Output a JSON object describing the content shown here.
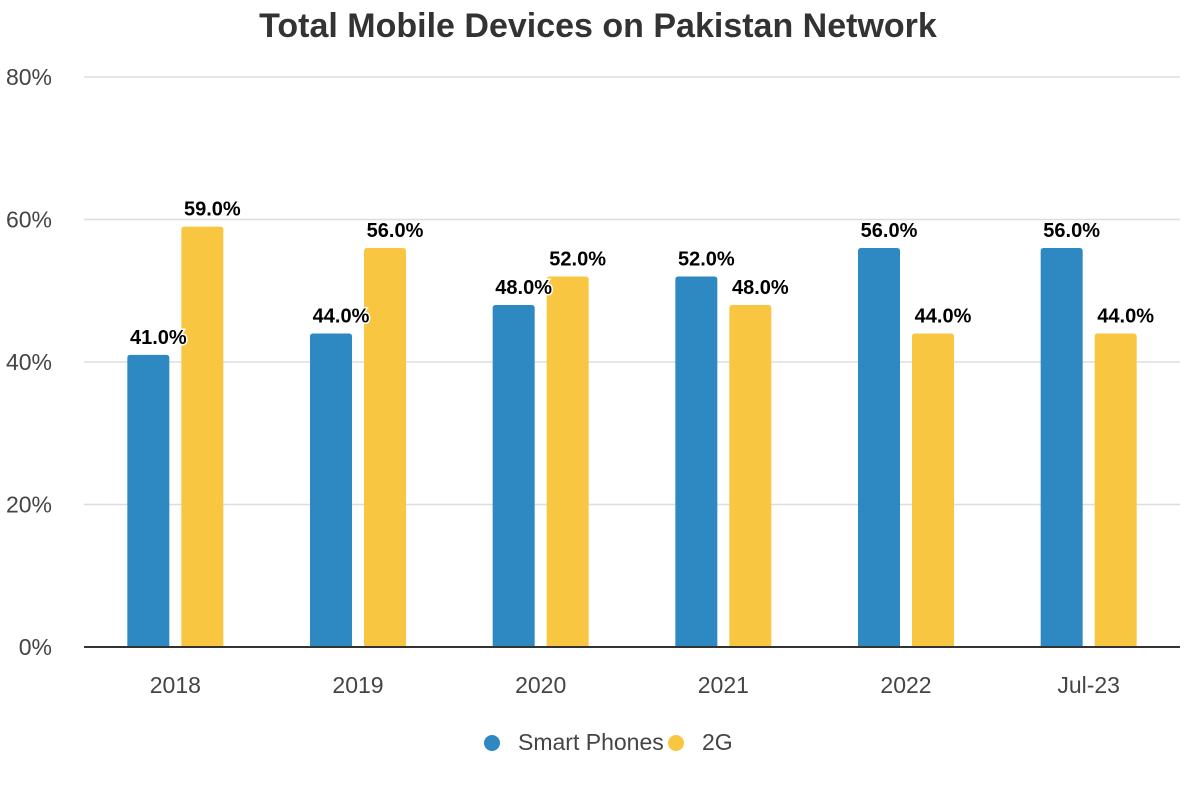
{
  "chart_data": {
    "type": "bar",
    "title": "Total Mobile Devices on Pakistan Network",
    "categories": [
      "2018",
      "2019",
      "2020",
      "2021",
      "2022",
      "Jul-23"
    ],
    "series": [
      {
        "name": "Smart Phones",
        "values": [
          41.0,
          44.0,
          48.0,
          52.0,
          56.0,
          56.0
        ],
        "color": "#2E88C1",
        "labels": [
          "41.0%",
          "44.0%",
          "48.0%",
          "52.0%",
          "56.0%",
          "56.0%"
        ]
      },
      {
        "name": "2G",
        "values": [
          59.0,
          56.0,
          52.0,
          48.0,
          44.0,
          44.0
        ],
        "color": "#F9C642",
        "labels": [
          "59.0%",
          "56.0%",
          "52.0%",
          "48.0%",
          "44.0%",
          "44.0%"
        ]
      }
    ],
    "ylim": [
      0,
      80
    ],
    "yticks": [
      0,
      20,
      40,
      60,
      80
    ],
    "ytick_labels": [
      "0%",
      "20%",
      "40%",
      "60%",
      "80%"
    ],
    "grid": true,
    "legend": "bottom"
  }
}
